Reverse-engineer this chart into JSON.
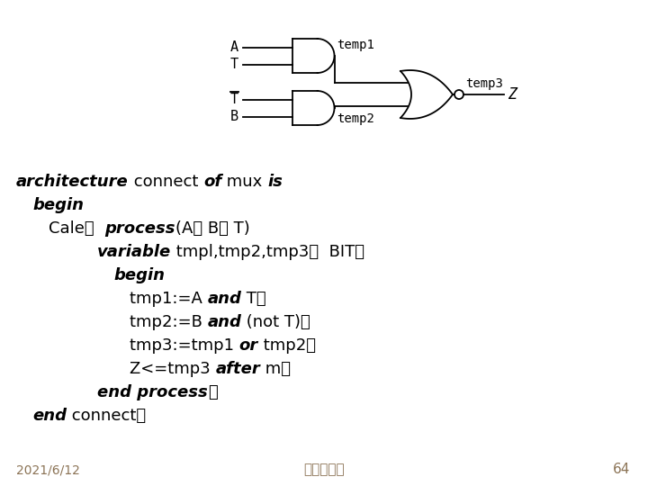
{
  "bg_color": "#ffffff",
  "gate_color": "#000000",
  "footer_date": "2021/6/12",
  "footer_center": "浙大微电子",
  "footer_page": "64",
  "footer_color": "#8B7355"
}
